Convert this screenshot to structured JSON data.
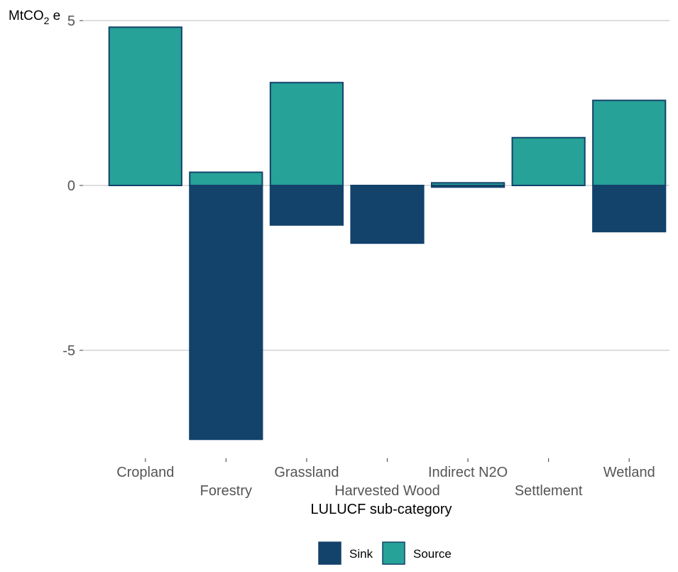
{
  "chart_data": {
    "type": "bar",
    "stacked": true,
    "title": "",
    "ylabel": {
      "main": "MtCO",
      "subscript": "2",
      "suffix": " e"
    },
    "xlabel": "LULUCF sub-category",
    "categories": [
      "Cropland",
      "Forestry",
      "Grassland",
      "Harvested Wood",
      "Indirect N2O",
      "Settlement",
      "Wetland"
    ],
    "series": [
      {
        "name": "Sink",
        "values": [
          0,
          -7.7,
          -1.2,
          -1.75,
          -0.05,
          0,
          -1.4
        ],
        "color": "#13426b"
      },
      {
        "name": "Source",
        "values": [
          4.8,
          0.4,
          3.12,
          0,
          0.08,
          1.45,
          2.58
        ],
        "color": "#27a298"
      }
    ],
    "ylim": [
      -8.3,
      5.3
    ],
    "yticks": [
      5,
      0,
      -5
    ],
    "ytick_labels": [
      "5",
      "0",
      "-5"
    ],
    "grid": true,
    "legend_position": "bottom",
    "border_color": "#13426b"
  }
}
